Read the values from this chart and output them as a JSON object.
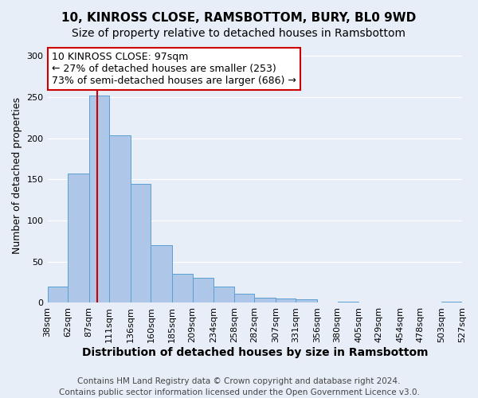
{
  "title": "10, KINROSS CLOSE, RAMSBOTTOM, BURY, BL0 9WD",
  "subtitle": "Size of property relative to detached houses in Ramsbottom",
  "xlabel": "Distribution of detached houses by size in Ramsbottom",
  "ylabel": "Number of detached properties",
  "bar_color": "#aec6e8",
  "bar_edge_color": "#5a9fd4",
  "background_color": "#e8eef8",
  "bin_edges": [
    38,
    62,
    87,
    111,
    136,
    160,
    185,
    209,
    234,
    258,
    282,
    307,
    331,
    356,
    380,
    405,
    429,
    454,
    478,
    503,
    527
  ],
  "bin_labels": [
    "38sqm",
    "62sqm",
    "87sqm",
    "111sqm",
    "136sqm",
    "160sqm",
    "185sqm",
    "209sqm",
    "234sqm",
    "258sqm",
    "282sqm",
    "307sqm",
    "331sqm",
    "356sqm",
    "380sqm",
    "405sqm",
    "429sqm",
    "454sqm",
    "478sqm",
    "503sqm",
    "527sqm"
  ],
  "counts": [
    20,
    157,
    252,
    204,
    145,
    70,
    35,
    30,
    20,
    11,
    6,
    5,
    4,
    0,
    1,
    0,
    0,
    0,
    0,
    1
  ],
  "ylim": [
    0,
    310
  ],
  "yticks": [
    0,
    50,
    100,
    150,
    200,
    250,
    300
  ],
  "property_line_x": 97,
  "annotation_title": "10 KINROSS CLOSE: 97sqm",
  "annotation_line1": "← 27% of detached houses are smaller (253)",
  "annotation_line2": "73% of semi-detached houses are larger (686) →",
  "annotation_box_color": "#ffffff",
  "annotation_box_edge": "#cc0000",
  "red_line_color": "#cc0000",
  "footer_line1": "Contains HM Land Registry data © Crown copyright and database right 2024.",
  "footer_line2": "Contains public sector information licensed under the Open Government Licence v3.0.",
  "title_fontsize": 11,
  "subtitle_fontsize": 10,
  "xlabel_fontsize": 10,
  "ylabel_fontsize": 9,
  "tick_fontsize": 8,
  "annotation_fontsize": 9,
  "footer_fontsize": 7.5
}
